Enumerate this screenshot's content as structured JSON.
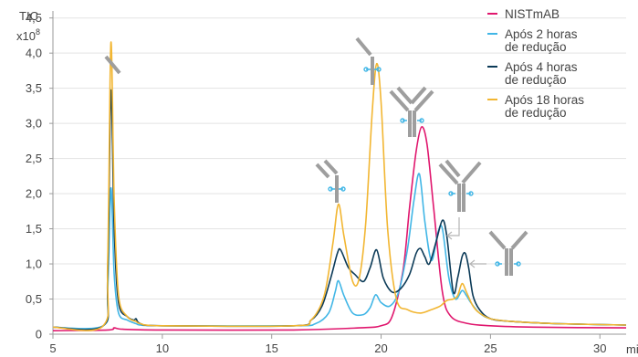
{
  "chart_data": {
    "type": "line",
    "ylabel": "TIC",
    "yunit_base": "x10",
    "yunit_exp": "8",
    "xunit": "min",
    "xlim": [
      5,
      31.2
    ],
    "ylim": [
      0,
      4.6
    ],
    "xticks": [
      5,
      10,
      15,
      20,
      25,
      30
    ],
    "xtick_labels": [
      "5",
      "10",
      "15",
      "20",
      "25",
      "30"
    ],
    "yticks": [
      0,
      0.5,
      1.0,
      1.5,
      2.0,
      2.5,
      3.0,
      3.5,
      4.0,
      4.5
    ],
    "ytick_labels": [
      "0",
      "0,5",
      "1,0",
      "1,5",
      "2,0",
      "2,5",
      "3,0",
      "3,5",
      "4,0",
      "4,5"
    ],
    "legend_position": "top-right",
    "series": [
      {
        "name": "NISTmAB",
        "name_lines": [
          "NISTmAB"
        ],
        "color": "#e0176e",
        "x": [
          5,
          7.5,
          7.8,
          8.2,
          10,
          16,
          19,
          20,
          20.5,
          21,
          21.3,
          21.6,
          21.85,
          22.1,
          22.4,
          22.8,
          23.2,
          24,
          25,
          27,
          31.2
        ],
        "y": [
          0.05,
          0.06,
          0.09,
          0.07,
          0.06,
          0.06,
          0.09,
          0.12,
          0.25,
          0.9,
          1.8,
          2.6,
          2.95,
          2.7,
          1.8,
          0.6,
          0.25,
          0.15,
          0.12,
          0.1,
          0.09
        ]
      },
      {
        "name": "Após 2 horas de redução",
        "name_lines": [
          "Após 2 horas",
          "de redução"
        ],
        "color": "#41b6e6",
        "x": [
          5,
          7.3,
          7.5,
          7.65,
          7.8,
          8.0,
          8.4,
          8.8,
          9.0,
          10,
          16,
          17,
          17.6,
          17.9,
          18.05,
          18.3,
          18.7,
          19.2,
          19.5,
          19.75,
          20.0,
          20.4,
          20.8,
          21.2,
          21.5,
          21.75,
          22.0,
          22.3,
          22.6,
          22.8,
          23.1,
          23.4,
          23.7,
          23.9,
          24.1,
          24.5,
          25,
          26,
          28,
          31.2
        ],
        "y": [
          0.1,
          0.12,
          0.6,
          2.08,
          0.85,
          0.3,
          0.2,
          0.15,
          0.13,
          0.12,
          0.12,
          0.15,
          0.3,
          0.6,
          0.76,
          0.55,
          0.3,
          0.28,
          0.38,
          0.56,
          0.45,
          0.4,
          0.6,
          1.2,
          1.9,
          2.28,
          1.6,
          1.05,
          1.45,
          1.5,
          0.8,
          0.5,
          0.62,
          0.55,
          0.45,
          0.3,
          0.22,
          0.18,
          0.15,
          0.13
        ]
      },
      {
        "name": "Após 4 horas de redução",
        "name_lines": [
          "Após 4 horas",
          "de redução"
        ],
        "color": "#0b3a57",
        "x": [
          5,
          7.3,
          7.5,
          7.65,
          7.8,
          8.0,
          8.4,
          8.7,
          8.8,
          9.0,
          10,
          16,
          16.8,
          17.3,
          17.7,
          18.0,
          18.15,
          18.5,
          18.8,
          19.2,
          19.5,
          19.8,
          20.1,
          20.5,
          20.9,
          21.3,
          21.6,
          21.8,
          22.0,
          22.2,
          22.5,
          22.8,
          23.0,
          23.3,
          23.5,
          23.7,
          23.85,
          24.0,
          24.2,
          24.5,
          25,
          26,
          28,
          31.2
        ],
        "y": [
          0.1,
          0.12,
          0.8,
          3.47,
          1.5,
          0.45,
          0.25,
          0.2,
          0.22,
          0.15,
          0.12,
          0.12,
          0.2,
          0.4,
          0.8,
          1.15,
          1.2,
          0.95,
          0.85,
          0.75,
          0.95,
          1.2,
          0.8,
          0.6,
          0.65,
          0.85,
          1.15,
          1.22,
          1.1,
          1.0,
          1.3,
          1.62,
          1.4,
          0.6,
          0.8,
          1.1,
          1.15,
          0.95,
          0.55,
          0.35,
          0.22,
          0.18,
          0.15,
          0.13
        ]
      },
      {
        "name": "Após 18 horas de redução",
        "name_lines": [
          "Após 18 horas",
          "de redução"
        ],
        "color": "#f2b632",
        "x": [
          5,
          7.3,
          7.5,
          7.65,
          7.8,
          8.0,
          8.4,
          8.8,
          9.0,
          10,
          16,
          16.8,
          17.4,
          17.8,
          18.05,
          18.3,
          18.7,
          19.0,
          19.3,
          19.6,
          19.8,
          20.0,
          20.3,
          20.7,
          21.2,
          21.8,
          22.3,
          22.7,
          23.0,
          23.3,
          23.5,
          23.7,
          23.9,
          24.2,
          24.5,
          25,
          26,
          28,
          31.2
        ],
        "y": [
          0.1,
          0.12,
          1.0,
          4.15,
          1.9,
          0.55,
          0.25,
          0.18,
          0.15,
          0.12,
          0.12,
          0.2,
          0.55,
          1.3,
          1.85,
          1.4,
          0.75,
          0.8,
          1.6,
          3.2,
          3.85,
          3.3,
          1.5,
          0.5,
          0.35,
          0.3,
          0.35,
          0.4,
          0.48,
          0.5,
          0.55,
          0.72,
          0.6,
          0.4,
          0.3,
          0.22,
          0.18,
          0.15,
          0.13
        ]
      }
    ]
  }
}
